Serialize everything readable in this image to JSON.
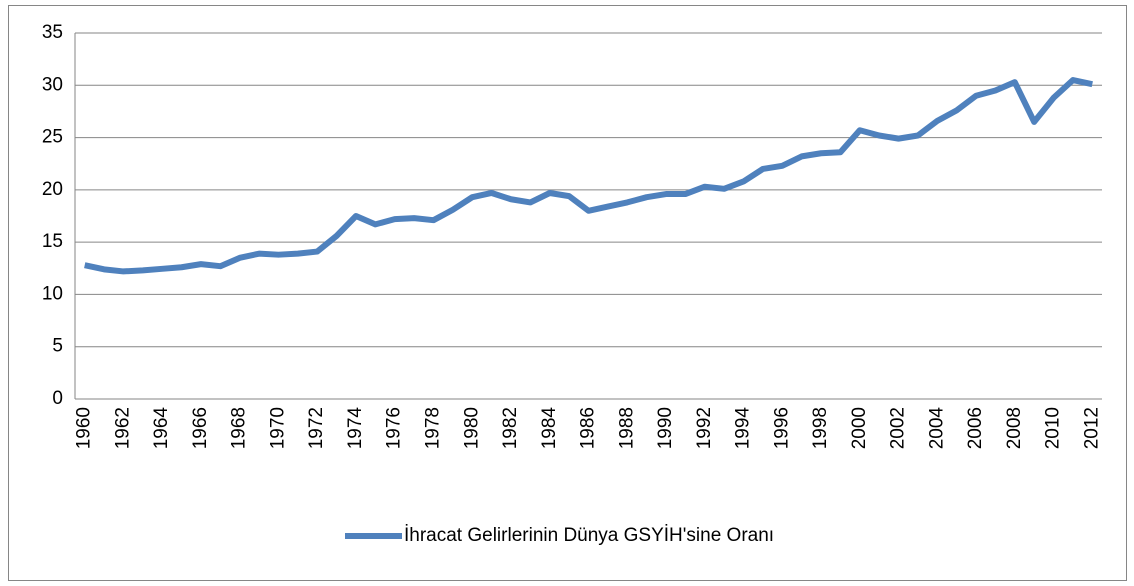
{
  "chart_data": {
    "type": "line",
    "categories": [
      "1960",
      null,
      "1962",
      null,
      "1964",
      null,
      "1966",
      null,
      "1968",
      null,
      "1970",
      null,
      "1972",
      null,
      "1974",
      null,
      "1976",
      null,
      "1978",
      null,
      "1980",
      null,
      "1982",
      null,
      "1984",
      null,
      "1986",
      null,
      "1988",
      null,
      "1990",
      null,
      "1992",
      null,
      "1994",
      null,
      "1996",
      null,
      "1998",
      null,
      "2000",
      null,
      "2002",
      null,
      "2004",
      null,
      "2006",
      null,
      "2008",
      null,
      "2010",
      null,
      "2012"
    ],
    "series": [
      {
        "name": "İhracat Gelirlerinin Dünya GSYİH'sine Oranı",
        "color": "#4f81bd",
        "values": [
          12.8,
          12.4,
          12.2,
          12.3,
          12.45,
          12.6,
          12.9,
          12.7,
          13.5,
          13.9,
          13.8,
          13.9,
          14.1,
          15.6,
          17.5,
          16.7,
          17.2,
          17.3,
          17.1,
          18.1,
          19.3,
          19.7,
          19.1,
          18.8,
          19.7,
          19.4,
          18.0,
          18.4,
          18.8,
          19.3,
          19.6,
          19.6,
          20.3,
          20.1,
          20.8,
          22.0,
          22.3,
          23.2,
          23.5,
          23.6,
          25.7,
          25.2,
          24.9,
          25.2,
          26.6,
          27.6,
          29.0,
          29.5,
          30.3,
          26.5,
          28.8,
          30.5,
          30.1
        ]
      }
    ],
    "ylim": [
      0,
      35
    ],
    "yticks": [
      0,
      5,
      10,
      15,
      20,
      25,
      30,
      35
    ],
    "grid": true,
    "legend": "bottom"
  }
}
